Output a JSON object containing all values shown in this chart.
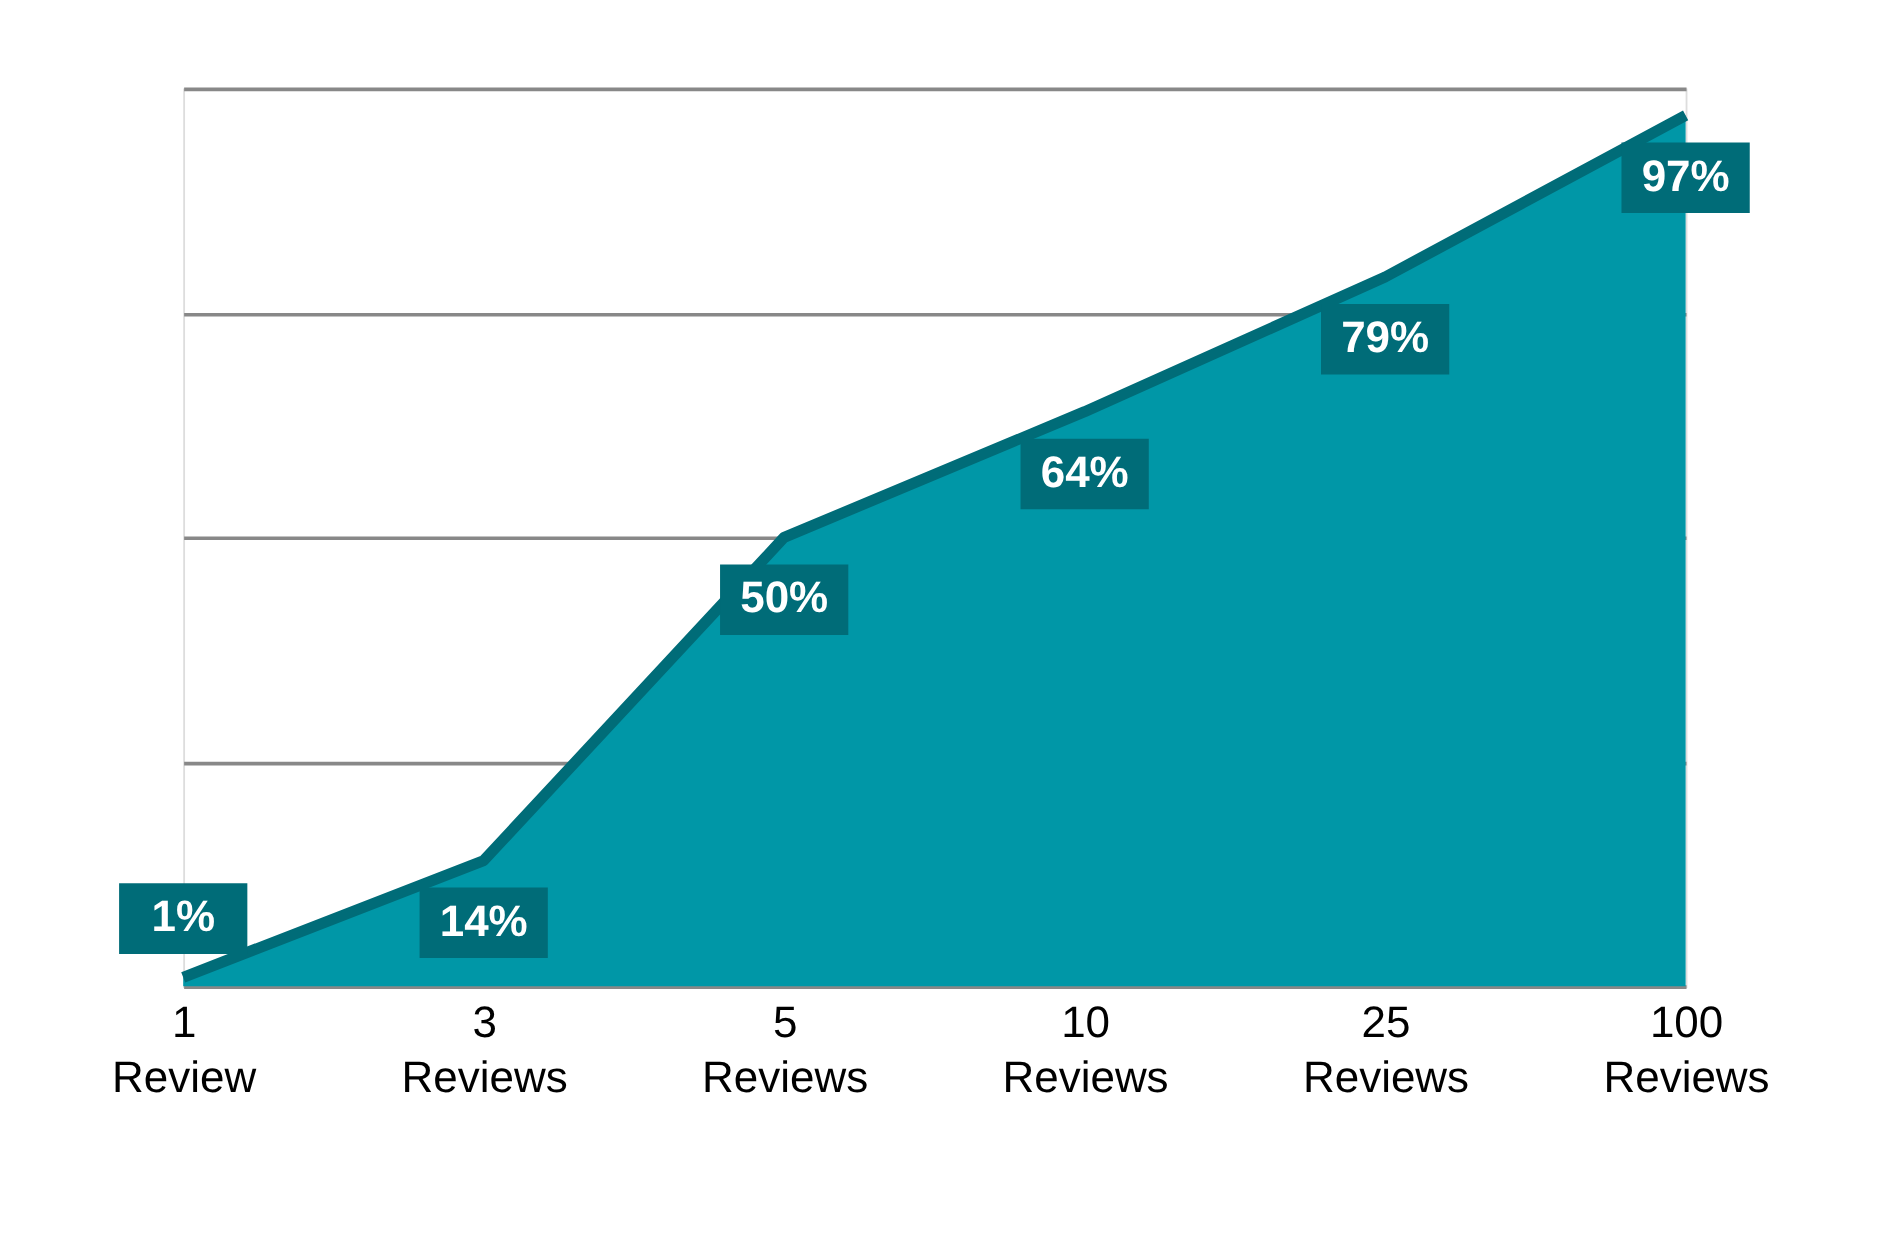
{
  "chart_data": {
    "type": "area",
    "categories": [
      "1 Review",
      "3 Reviews",
      "5 Reviews",
      "10 Reviews",
      "25 Reviews",
      "100 Reviews"
    ],
    "series": [
      {
        "color": "#0097a7",
        "values": [
          1,
          14,
          50,
          64,
          79,
          97
        ],
        "value_labels": [
          "1%",
          "14%",
          "50%",
          "64%",
          "79%",
          "97%"
        ]
      }
    ],
    "ylim": [
      0,
      100
    ],
    "yticks": [
      {
        "value": 0,
        "label": null
      },
      {
        "value": 25,
        "label": null
      },
      {
        "value": 50,
        "label": null
      },
      {
        "value": 75,
        "label": null
      },
      {
        "value": 100,
        "label": null
      }
    ],
    "grid": "y",
    "tick_labels": "x"
  }
}
